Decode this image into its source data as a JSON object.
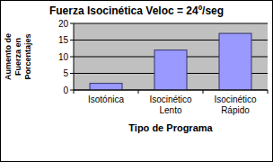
{
  "chart_data": {
    "type": "bar",
    "title": "Fuerza Isocinética Veloc = 24º/seg",
    "y_label": "Aumento de Fuerza en Porcentajes",
    "x_label": "Tipo de Programa",
    "categories": [
      "Isotónica",
      "Isocinético Lento",
      "Isocinético Rápido"
    ],
    "values": [
      2,
      12,
      17
    ],
    "color": "#9999ff",
    "ylim": [
      0,
      20
    ],
    "yticks": [
      0,
      5,
      10,
      15,
      20
    ],
    "grid": true
  }
}
